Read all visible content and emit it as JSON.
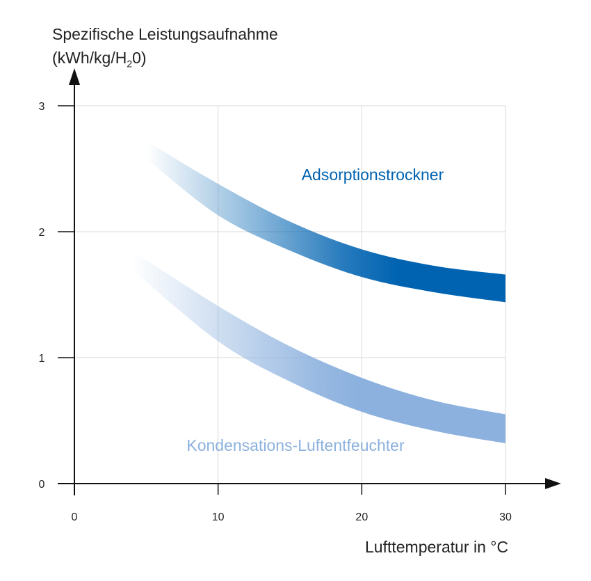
{
  "chart_data": {
    "type": "area",
    "ylabel_line1": "Spezifische Leistungsaufnahme",
    "ylabel_line2_pre": "(kWh/kg/H",
    "ylabel_line2_sub": "2",
    "ylabel_line2_post": "0)",
    "xlabel": "Lufttemperatur in °C",
    "xlim": [
      0,
      30
    ],
    "ylim": [
      0,
      3
    ],
    "xticks": [
      0,
      10,
      20,
      30
    ],
    "yticks": [
      0,
      1,
      2,
      3
    ],
    "grid": true,
    "series": [
      {
        "name": "Adsorptionstrockner",
        "color": "#0063b1",
        "x": [
          5,
          10,
          15,
          20,
          25,
          30
        ],
        "upper": [
          2.72,
          2.38,
          2.08,
          1.86,
          1.73,
          1.66
        ],
        "lower": [
          2.58,
          2.13,
          1.85,
          1.64,
          1.52,
          1.44
        ]
      },
      {
        "name": "Kondensations-Luftentfeuchter",
        "color": "#8cb1de",
        "x": [
          4,
          10,
          15,
          20,
          25,
          30
        ],
        "upper": [
          1.85,
          1.41,
          1.09,
          0.84,
          0.66,
          0.55
        ],
        "lower": [
          1.7,
          1.13,
          0.81,
          0.57,
          0.42,
          0.32
        ]
      }
    ]
  }
}
